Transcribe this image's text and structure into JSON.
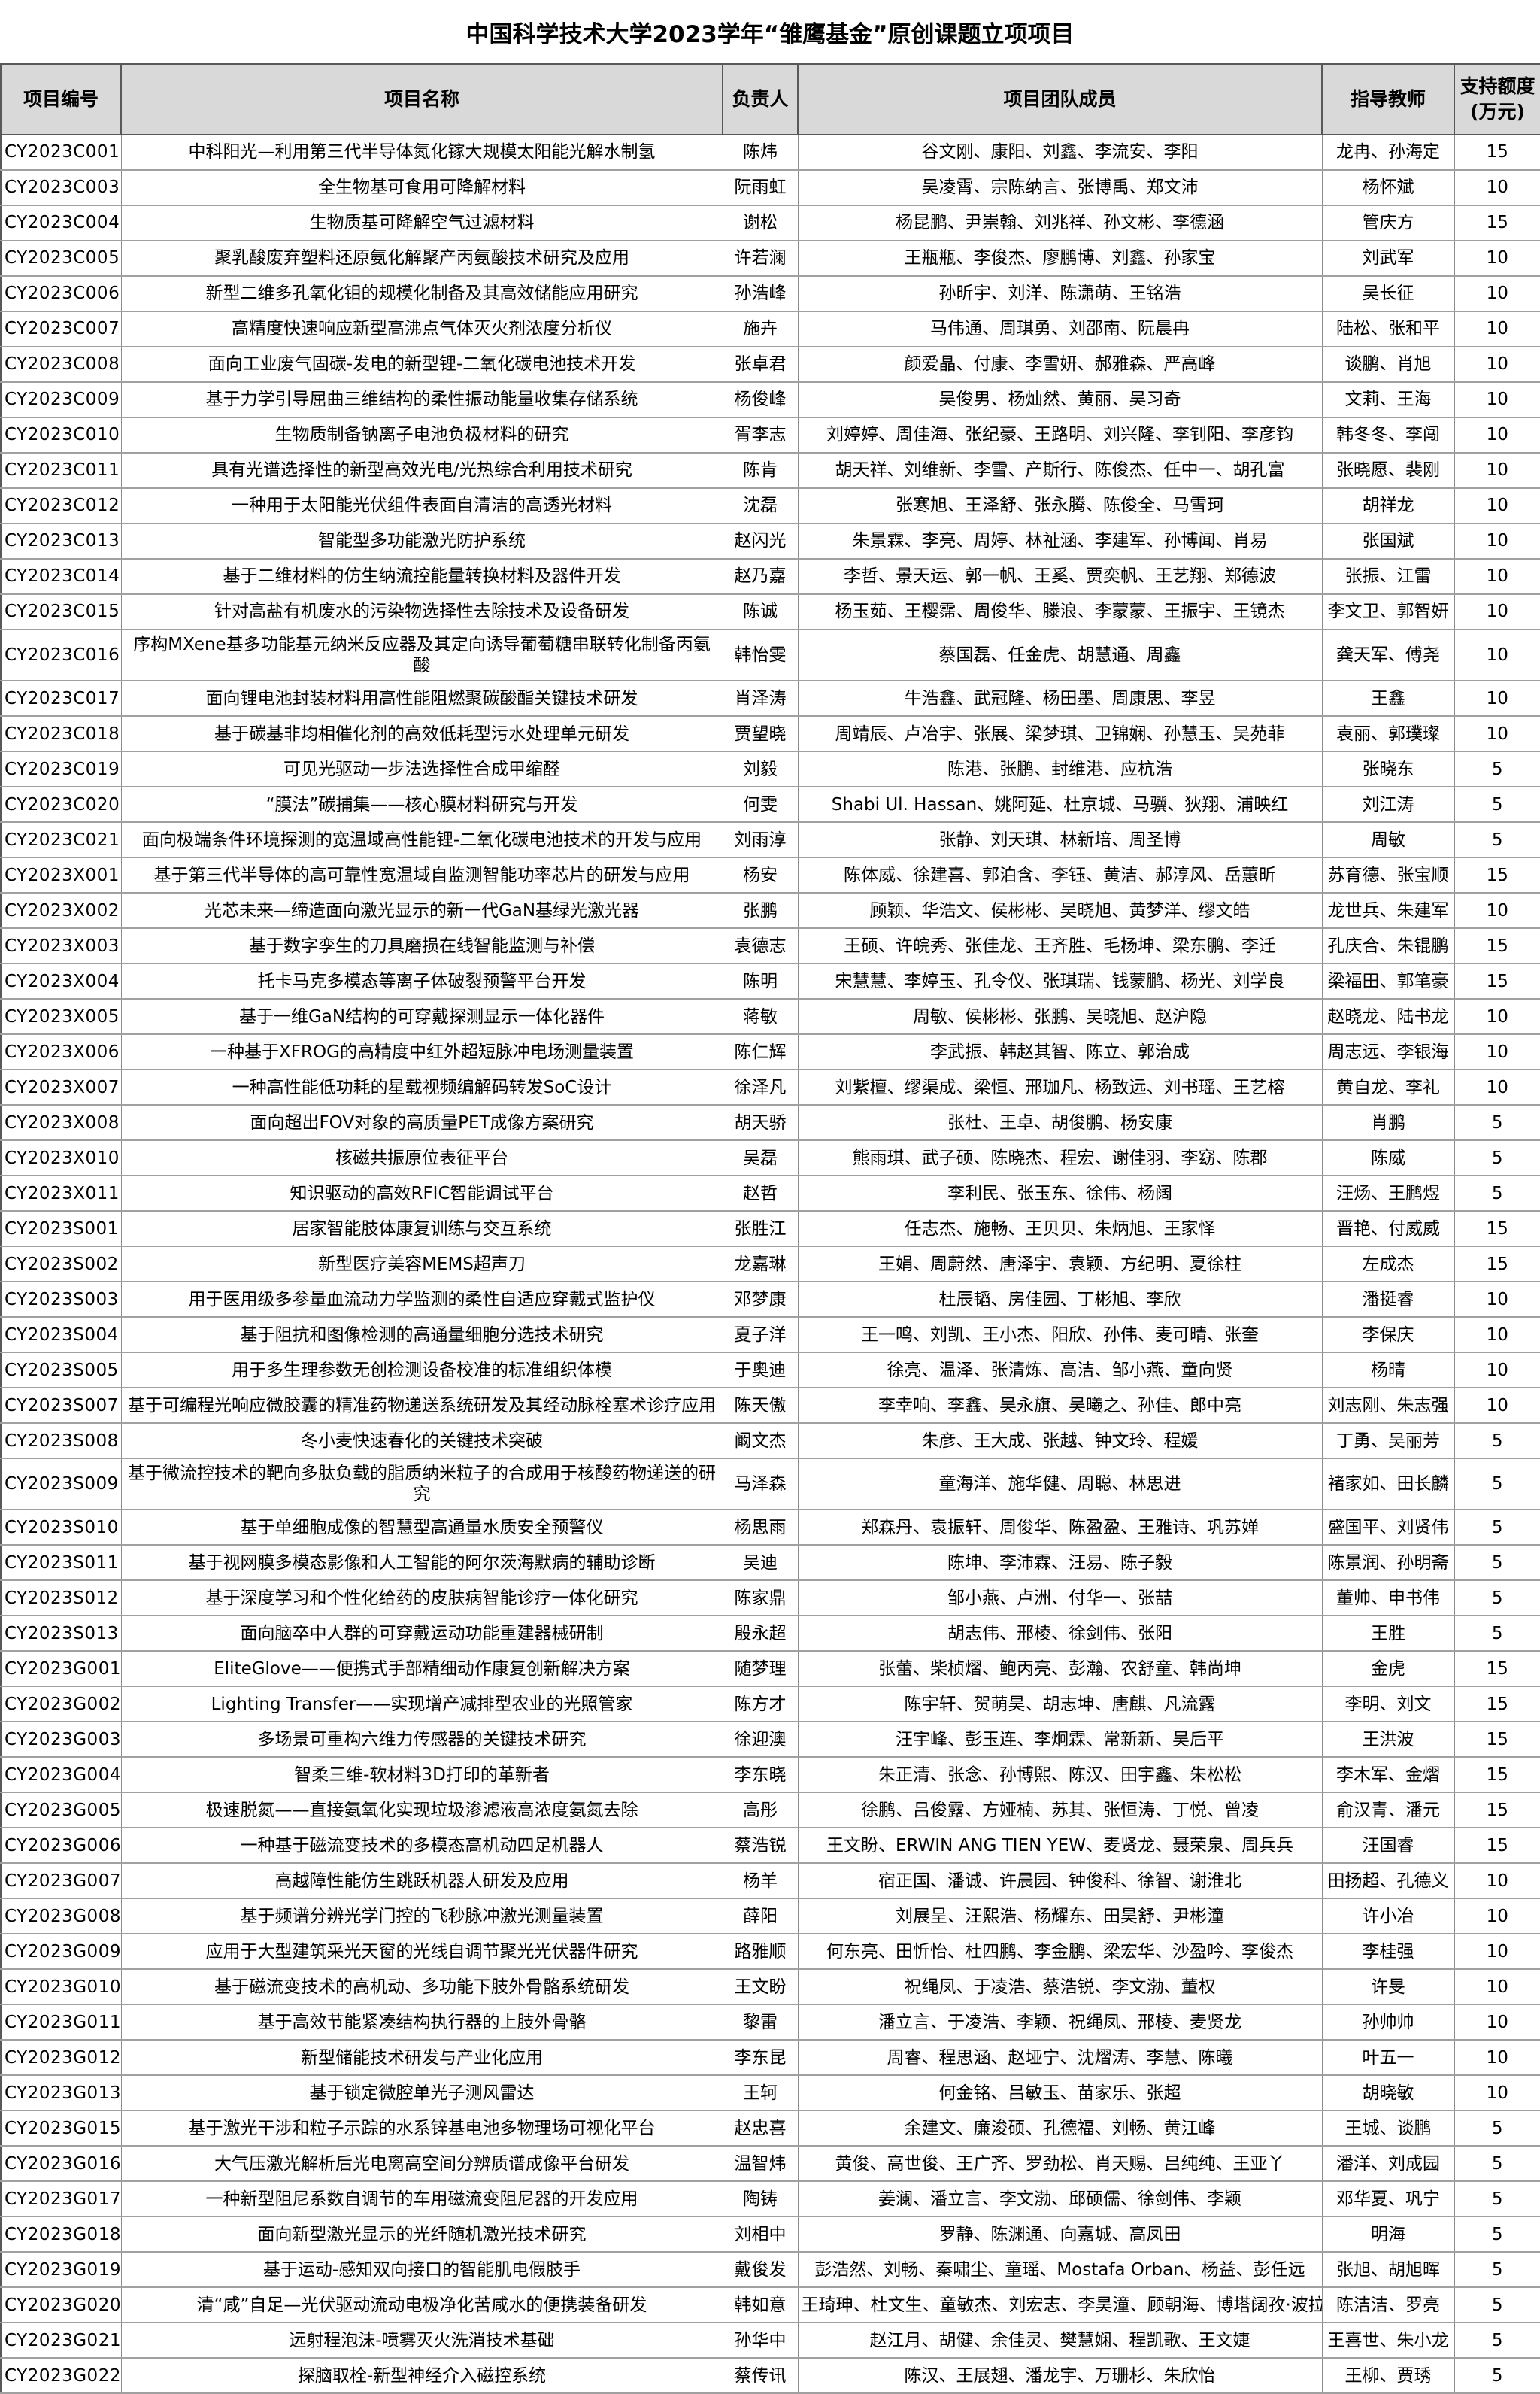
{
  "title": "中国科学技术大学2023学年“雏鹰基金”原创课题立项项目",
  "columns": [
    {
      "key": "project-id",
      "label": "项目编号"
    },
    {
      "key": "project-name",
      "label": "项目名称"
    },
    {
      "key": "leader",
      "label": "负责人"
    },
    {
      "key": "team-members",
      "label": "项目团队成员"
    },
    {
      "key": "advisor",
      "label": "指导教师"
    },
    {
      "key": "support-amount",
      "label": "支持额度",
      "sublabel": "(万元)"
    }
  ],
  "rows": [
    {
      "id": "CY2023C001",
      "name": "中科阳光—利用第三代半导体氮化镓大规模太阳能光解水制氢",
      "leader": "陈炜",
      "team": "谷文刚、康阳、刘鑫、李流安、李阳",
      "advisor": "龙冉、孙海定",
      "amount": "15"
    },
    {
      "id": "CY2023C003",
      "name": "全生物基可食用可降解材料",
      "leader": "阮雨虹",
      "team": "吴凌霄、宗陈纳言、张博禹、郑文沛",
      "advisor": "杨怀斌",
      "amount": "10"
    },
    {
      "id": "CY2023C004",
      "name": "生物质基可降解空气过滤材料",
      "leader": "谢松",
      "team": "杨昆鹏、尹崇翰、刘兆祥、孙文彬、李德涵",
      "advisor": "管庆方",
      "amount": "15"
    },
    {
      "id": "CY2023C005",
      "name": "聚乳酸废弃塑料还原氨化解聚产丙氨酸技术研究及应用",
      "leader": "许若澜",
      "team": "王瓶瓶、李俊杰、廖鹏博、刘鑫、孙家宝",
      "advisor": "刘武军",
      "amount": "10"
    },
    {
      "id": "CY2023C006",
      "name": "新型二维多孔氧化钼的规模化制备及其高效储能应用研究",
      "leader": "孙浩峰",
      "team": "孙昕宇、刘洋、陈潇萌、王铭浩",
      "advisor": "吴长征",
      "amount": "10"
    },
    {
      "id": "CY2023C007",
      "name": "高精度快速响应新型高沸点气体灭火剂浓度分析仪",
      "leader": "施卉",
      "team": "马伟通、周琪勇、刘邵南、阮晨冉",
      "advisor": "陆松、张和平",
      "amount": "10"
    },
    {
      "id": "CY2023C008",
      "name": "面向工业废气固碳-发电的新型锂-二氧化碳电池技术开发",
      "leader": "张卓君",
      "team": "颜爱晶、付康、李雪妍、郝雅森、严高峰",
      "advisor": "谈鹏、肖旭",
      "amount": "10"
    },
    {
      "id": "CY2023C009",
      "name": "基于力学引导屈曲三维结构的柔性振动能量收集存储系统",
      "leader": "杨俊峰",
      "team": "吴俊男、杨灿然、黄丽、吴习奇",
      "advisor": "文莉、王海",
      "amount": "10"
    },
    {
      "id": "CY2023C010",
      "name": "生物质制备钠离子电池负极材料的研究",
      "leader": "胥李志",
      "team": "刘婷婷、周佳海、张纪豪、王路明、刘兴隆、李钊阳、李彦钧",
      "advisor": "韩冬冬、李闯",
      "amount": "10"
    },
    {
      "id": "CY2023C011",
      "name": "具有光谱选择性的新型高效光电/光热综合利用技术研究",
      "leader": "陈肯",
      "team": "胡天祥、刘维新、李雪、产斯行、陈俊杰、任中一、胡孔富",
      "advisor": "张晓愿、裴刚",
      "amount": "10"
    },
    {
      "id": "CY2023C012",
      "name": "一种用于太阳能光伏组件表面自清洁的高透光材料",
      "leader": "沈磊",
      "team": "张寒旭、王泽舒、张永腾、陈俊全、马雪珂",
      "advisor": "胡祥龙",
      "amount": "10"
    },
    {
      "id": "CY2023C013",
      "name": "智能型多功能激光防护系统",
      "leader": "赵闪光",
      "team": "朱景霖、李亮、周婷、林祉涵、李建军、孙博闻、肖易",
      "advisor": "张国斌",
      "amount": "10"
    },
    {
      "id": "CY2023C014",
      "name": "基于二维材料的仿生纳流控能量转换材料及器件开发",
      "leader": "赵乃嘉",
      "team": "李哲、景天运、郭一帆、王奚、贾奕帆、王艺翔、郑德波",
      "advisor": "张振、江雷",
      "amount": "10"
    },
    {
      "id": "CY2023C015",
      "name": "针对高盐有机废水的污染物选择性去除技术及设备研发",
      "leader": "陈诚",
      "team": "杨玉茹、王樱霈、周俊华、滕浪、李蒙蒙、王振宇、王镜杰",
      "advisor": "李文卫、郭智妍",
      "amount": "10"
    },
    {
      "id": "CY2023C016",
      "name": "序构MXene基多功能基元纳米反应器及其定向诱导葡萄糖串联转化制备丙氨酸",
      "leader": "韩怡雯",
      "team": "蔡国磊、任金虎、胡慧通、周鑫",
      "advisor": "龚天军、傅尧",
      "amount": "10"
    },
    {
      "id": "CY2023C017",
      "name": "面向锂电池封装材料用高性能阻燃聚碳酸酯关键技术研发",
      "leader": "肖泽涛",
      "team": "牛浩鑫、武冠隆、杨田墨、周康思、李昱",
      "advisor": "王鑫",
      "amount": "10"
    },
    {
      "id": "CY2023C018",
      "name": "基于碳基非均相催化剂的高效低耗型污水处理单元研发",
      "leader": "贾望晓",
      "team": "周靖辰、卢冶宇、张展、梁梦琪、卫锦娴、孙慧玉、吴苑菲",
      "advisor": "袁丽、郭璞璨",
      "amount": "10"
    },
    {
      "id": "CY2023C019",
      "name": "可见光驱动一步法选择性合成甲缩醛",
      "leader": "刘毅",
      "team": "陈港、张鹏、封维港、应杭浩",
      "advisor": "张晓东",
      "amount": "5"
    },
    {
      "id": "CY2023C020",
      "name": "“膜法”碳捕集——核心膜材料研究与开发",
      "leader": "何雯",
      "team": "Shabi Ul. Hassan、姚阿延、杜京城、马骥、狄翔、浦映红",
      "advisor": "刘江涛",
      "amount": "5"
    },
    {
      "id": "CY2023C021",
      "name": "面向极端条件环境探测的宽温域高性能锂-二氧化碳电池技术的开发与应用",
      "leader": "刘雨淳",
      "team": "张静、刘天琪、林新培、周圣博",
      "advisor": "周敏",
      "amount": "5"
    },
    {
      "id": "CY2023X001",
      "name": "基于第三代半导体的高可靠性宽温域自监测智能功率芯片的研发与应用",
      "leader": "杨安",
      "team": "陈体威、徐建喜、郭泊含、李钰、黄洁、郝淳风、岳蕙昕",
      "advisor": "苏育德、张宝顺",
      "amount": "15"
    },
    {
      "id": "CY2023X002",
      "name": "光芯未来—缔造面向激光显示的新一代GaN基绿光激光器",
      "leader": "张鹏",
      "team": "顾颖、华浩文、侯彬彬、吴晓旭、黄梦洋、缪文皓",
      "advisor": "龙世兵、朱建军",
      "amount": "10"
    },
    {
      "id": "CY2023X003",
      "name": "基于数字孪生的刀具磨损在线智能监测与补偿",
      "leader": "袁德志",
      "team": "王硕、许皖秀、张佳龙、王齐胜、毛杨坤、梁东鹏、李迁",
      "advisor": "孔庆合、朱锟鹏",
      "amount": "15"
    },
    {
      "id": "CY2023X004",
      "name": "托卡马克多模态等离子体破裂预警平台开发",
      "leader": "陈明",
      "team": "宋慧慧、李婷玉、孔令仪、张琪瑞、钱蒙鹏、杨光、刘学良",
      "advisor": "梁福田、郭笔豪",
      "amount": "15"
    },
    {
      "id": "CY2023X005",
      "name": "基于一维GaN结构的可穿戴探测显示一体化器件",
      "leader": "蒋敏",
      "team": "周敏、侯彬彬、张鹏、吴晓旭、赵沪隐",
      "advisor": "赵晓龙、陆书龙",
      "amount": "10"
    },
    {
      "id": "CY2023X006",
      "name": "一种基于XFROG的高精度中红外超短脉冲电场测量装置",
      "leader": "陈仁辉",
      "team": "李武振、韩赵其智、陈立、郭治成",
      "advisor": "周志远、李银海",
      "amount": "10"
    },
    {
      "id": "CY2023X007",
      "name": "一种高性能低功耗的星载视频编解码转发SoC设计",
      "leader": "徐泽凡",
      "team": "刘紫檀、缪渠成、梁恒、邢珈凡、杨致远、刘书瑶、王艺榕",
      "advisor": "黄自龙、李礼",
      "amount": "10"
    },
    {
      "id": "CY2023X008",
      "name": "面向超出FOV对象的高质量PET成像方案研究",
      "leader": "胡天骄",
      "team": "张杜、王卓、胡俊鹏、杨安康",
      "advisor": "肖鹏",
      "amount": "5"
    },
    {
      "id": "CY2023X010",
      "name": "核磁共振原位表征平台",
      "leader": "吴磊",
      "team": "熊雨琪、武子硕、陈晓杰、程宏、谢佳羽、李窈、陈郡",
      "advisor": "陈威",
      "amount": "5"
    },
    {
      "id": "CY2023X011",
      "name": "知识驱动的高效RFIC智能调试平台",
      "leader": "赵哲",
      "team": "李利民、张玉东、徐伟、杨阔",
      "advisor": "汪炀、王鹏煜",
      "amount": "5"
    },
    {
      "id": "CY2023S001",
      "name": "居家智能肢体康复训练与交互系统",
      "leader": "张胜江",
      "team": "任志杰、施畅、王贝贝、朱炳旭、王家怿",
      "advisor": "晋艳、付威威",
      "amount": "15"
    },
    {
      "id": "CY2023S002",
      "name": "新型医疗美容MEMS超声刀",
      "leader": "龙嘉琳",
      "team": "王娟、周蔚然、唐泽宇、袁颖、方纪明、夏徐柱",
      "advisor": "左成杰",
      "amount": "15"
    },
    {
      "id": "CY2023S003",
      "name": "用于医用级多参量血流动力学监测的柔性自适应穿戴式监护仪",
      "leader": "邓梦康",
      "team": "杜辰韬、房佳园、丁彬旭、李欣",
      "advisor": "潘挺睿",
      "amount": "10"
    },
    {
      "id": "CY2023S004",
      "name": "基于阻抗和图像检测的高通量细胞分选技术研究",
      "leader": "夏子洋",
      "team": "王一鸣、刘凯、王小杰、阳欣、孙伟、麦可晴、张奎",
      "advisor": "李保庆",
      "amount": "10"
    },
    {
      "id": "CY2023S005",
      "name": "用于多生理参数无创检测设备校准的标准组织体模",
      "leader": "于奥迪",
      "team": "徐亮、温泽、张清炼、高洁、邹小燕、童向贤",
      "advisor": "杨晴",
      "amount": "10"
    },
    {
      "id": "CY2023S007",
      "name": "基于可编程光响应微胶囊的精准药物递送系统研发及其经动脉栓塞术诊疗应用",
      "leader": "陈天傲",
      "team": "李幸响、李鑫、吴永旗、吴曦之、孙佳、郎中亮",
      "advisor": "刘志刚、朱志强",
      "amount": "10"
    },
    {
      "id": "CY2023S008",
      "name": "冬小麦快速春化的关键技术突破",
      "leader": "阚文杰",
      "team": "朱彦、王大成、张越、钟文玲、程媛",
      "advisor": "丁勇、吴丽芳",
      "amount": "5"
    },
    {
      "id": "CY2023S009",
      "name": "基于微流控技术的靶向多肽负载的脂质纳米粒子的合成用于核酸药物递送的研究",
      "leader": "马泽森",
      "team": "童海洋、施华健、周聪、林思进",
      "advisor": "褚家如、田长麟",
      "amount": "5"
    },
    {
      "id": "CY2023S010",
      "name": "基于单细胞成像的智慧型高通量水质安全预警仪",
      "leader": "杨思雨",
      "team": "郑森丹、袁振轩、周俊华、陈盈盈、王雅诗、巩苏婵",
      "advisor": "盛国平、刘贤伟",
      "amount": "5"
    },
    {
      "id": "CY2023S011",
      "name": "基于视网膜多模态影像和人工智能的阿尔茨海默病的辅助诊断",
      "leader": "吴迪",
      "team": "陈坤、李沛霖、汪易、陈子毅",
      "advisor": "陈景润、孙明斋",
      "amount": "5"
    },
    {
      "id": "CY2023S012",
      "name": "基于深度学习和个性化给药的皮肤病智能诊疗一体化研究",
      "leader": "陈家鼎",
      "team": "邹小燕、卢洲、付华一、张喆",
      "advisor": "董帅、申书伟",
      "amount": "5"
    },
    {
      "id": "CY2023S013",
      "name": "面向脑卒中人群的可穿戴运动功能重建器械研制",
      "leader": "殷永超",
      "team": "胡志伟、邢棱、徐剑伟、张阳",
      "advisor": "王胜",
      "amount": "5"
    },
    {
      "id": "CY2023G001",
      "name": "EliteGlove——便携式手部精细动作康复创新解决方案",
      "leader": "随梦理",
      "team": "张蕾、柴桢熠、鲍丙亮、彭瀚、农舒童、韩尚坤",
      "advisor": "金虎",
      "amount": "15"
    },
    {
      "id": "CY2023G002",
      "name": "Lighting Transfer——实现增产减排型农业的光照管家",
      "leader": "陈方才",
      "team": "陈宇轩、贺萌昊、胡志坤、唐麒、凡流露",
      "advisor": "李明、刘文",
      "amount": "15"
    },
    {
      "id": "CY2023G003",
      "name": "多场景可重构六维力传感器的关键技术研究",
      "leader": "徐迎澳",
      "team": "汪宇峰、彭玉连、李炯霖、常新新、吴后平",
      "advisor": "王洪波",
      "amount": "15"
    },
    {
      "id": "CY2023G004",
      "name": "智柔三维-软材料3D打印的革新者",
      "leader": "李东晓",
      "team": "朱正清、张念、孙博熙、陈汉、田宇鑫、朱松松",
      "advisor": "李木军、金熠",
      "amount": "15"
    },
    {
      "id": "CY2023G005",
      "name": "极速脱氮——直接氨氧化实现垃圾渗滤液高浓度氨氮去除",
      "leader": "高彤",
      "team": "徐鹏、吕俊露、方娅楠、苏其、张恒涛、丁悦、曾凌",
      "advisor": "俞汉青、潘元",
      "amount": "15"
    },
    {
      "id": "CY2023G006",
      "name": "一种基于磁流变技术的多模态高机动四足机器人",
      "leader": "蔡浩锐",
      "team": "王文盼、ERWIN ANG TIEN YEW、麦贤龙、聂荣泉、周兵兵",
      "advisor": "汪国睿",
      "amount": "15"
    },
    {
      "id": "CY2023G007",
      "name": "高越障性能仿生跳跃机器人研发及应用",
      "leader": "杨羊",
      "team": "宿正国、潘诚、许晨园、钟俊科、徐智、谢淮北",
      "advisor": "田扬超、孔德义",
      "amount": "10"
    },
    {
      "id": "CY2023G008",
      "name": "基于频谱分辨光学门控的飞秒脉冲激光测量装置",
      "leader": "薛阳",
      "team": "刘展呈、汪熙浩、杨耀东、田昊舒、尹彬潼",
      "advisor": "许小冶",
      "amount": "10"
    },
    {
      "id": "CY2023G009",
      "name": "应用于大型建筑采光天窗的光线自调节聚光光伏器件研究",
      "leader": "路雅顺",
      "team": "何东亮、田忻怡、杜四鹏、李金鹏、梁宏华、沙盈吟、李俊杰",
      "advisor": "李桂强",
      "amount": "10"
    },
    {
      "id": "CY2023G010",
      "name": "基于磁流变技术的高机动、多功能下肢外骨骼系统研发",
      "leader": "王文盼",
      "team": "祝绳凤、于凌浩、蔡浩锐、李文渤、董权",
      "advisor": "许旻",
      "amount": "10"
    },
    {
      "id": "CY2023G011",
      "name": "基于高效节能紧凑结构执行器的上肢外骨骼",
      "leader": "黎雷",
      "team": "潘立言、于凌浩、李颖、祝绳凤、邢棱、麦贤龙",
      "advisor": "孙帅帅",
      "amount": "10"
    },
    {
      "id": "CY2023G012",
      "name": "新型储能技术研发与产业化应用",
      "leader": "李东昆",
      "team": "周睿、程思涵、赵垭宁、沈熠涛、李慧、陈曦",
      "advisor": "叶五一",
      "amount": "10"
    },
    {
      "id": "CY2023G013",
      "name": "基于锁定微腔单光子测风雷达",
      "leader": "王轲",
      "team": "何金铭、吕敏玉、苗家乐、张超",
      "advisor": "胡晓敏",
      "amount": "10"
    },
    {
      "id": "CY2023G015",
      "name": "基于激光干涉和粒子示踪的水系锌基电池多物理场可视化平台",
      "leader": "赵忠喜",
      "team": "余建文、廉浚硕、孔德福、刘畅、黄江峰",
      "advisor": "王城、谈鹏",
      "amount": "5"
    },
    {
      "id": "CY2023G016",
      "name": "大气压激光解析后光电离高空间分辨质谱成像平台研发",
      "leader": "温智炜",
      "team": "黄俊、高世俊、王广齐、罗劲松、肖天赐、吕纯纯、王亚丫",
      "advisor": "潘洋、刘成园",
      "amount": "5"
    },
    {
      "id": "CY2023G017",
      "name": "一种新型阻尼系数自调节的车用磁流变阻尼器的开发应用",
      "leader": "陶铸",
      "team": "姜澜、潘立言、李文渤、邱硕儒、徐剑伟、李颖",
      "advisor": "邓华夏、巩宁",
      "amount": "5"
    },
    {
      "id": "CY2023G018",
      "name": "面向新型激光显示的光纤随机激光技术研究",
      "leader": "刘相中",
      "team": "罗静、陈渊通、向嘉城、高凤田",
      "advisor": "明海",
      "amount": "5"
    },
    {
      "id": "CY2023G019",
      "name": "基于运动-感知双向接口的智能肌电假肢手",
      "leader": "戴俊发",
      "team": "彭浩然、刘畅、秦啸尘、童瑶、Mostafa Orban、杨益、彭任远",
      "advisor": "张旭、胡旭晖",
      "amount": "5"
    },
    {
      "id": "CY2023G020",
      "name": "清“咸”自足—光伏驱动流动电极净化苦咸水的便携装备研发",
      "leader": "韩如意",
      "team": "王琦珅、杜文生、童敏杰、刘宏志、李昊潼、顾朝海、博塔阔孜·波拉提",
      "advisor": "陈洁洁、罗亮",
      "amount": "5"
    },
    {
      "id": "CY2023G021",
      "name": "远射程泡沫-喷雾灭火洗消技术基础",
      "leader": "孙华中",
      "team": "赵江月、胡健、余佳灵、樊慧娴、程凯歌、王文婕",
      "advisor": "王喜世、朱小龙",
      "amount": "5"
    },
    {
      "id": "CY2023G022",
      "name": "探脑取栓-新型神经介入磁控系统",
      "leader": "蔡传讯",
      "team": "陈汉、王展翅、潘龙宇、万珊杉、朱欣怡",
      "advisor": "王柳、贾琇",
      "amount": "5"
    }
  ]
}
